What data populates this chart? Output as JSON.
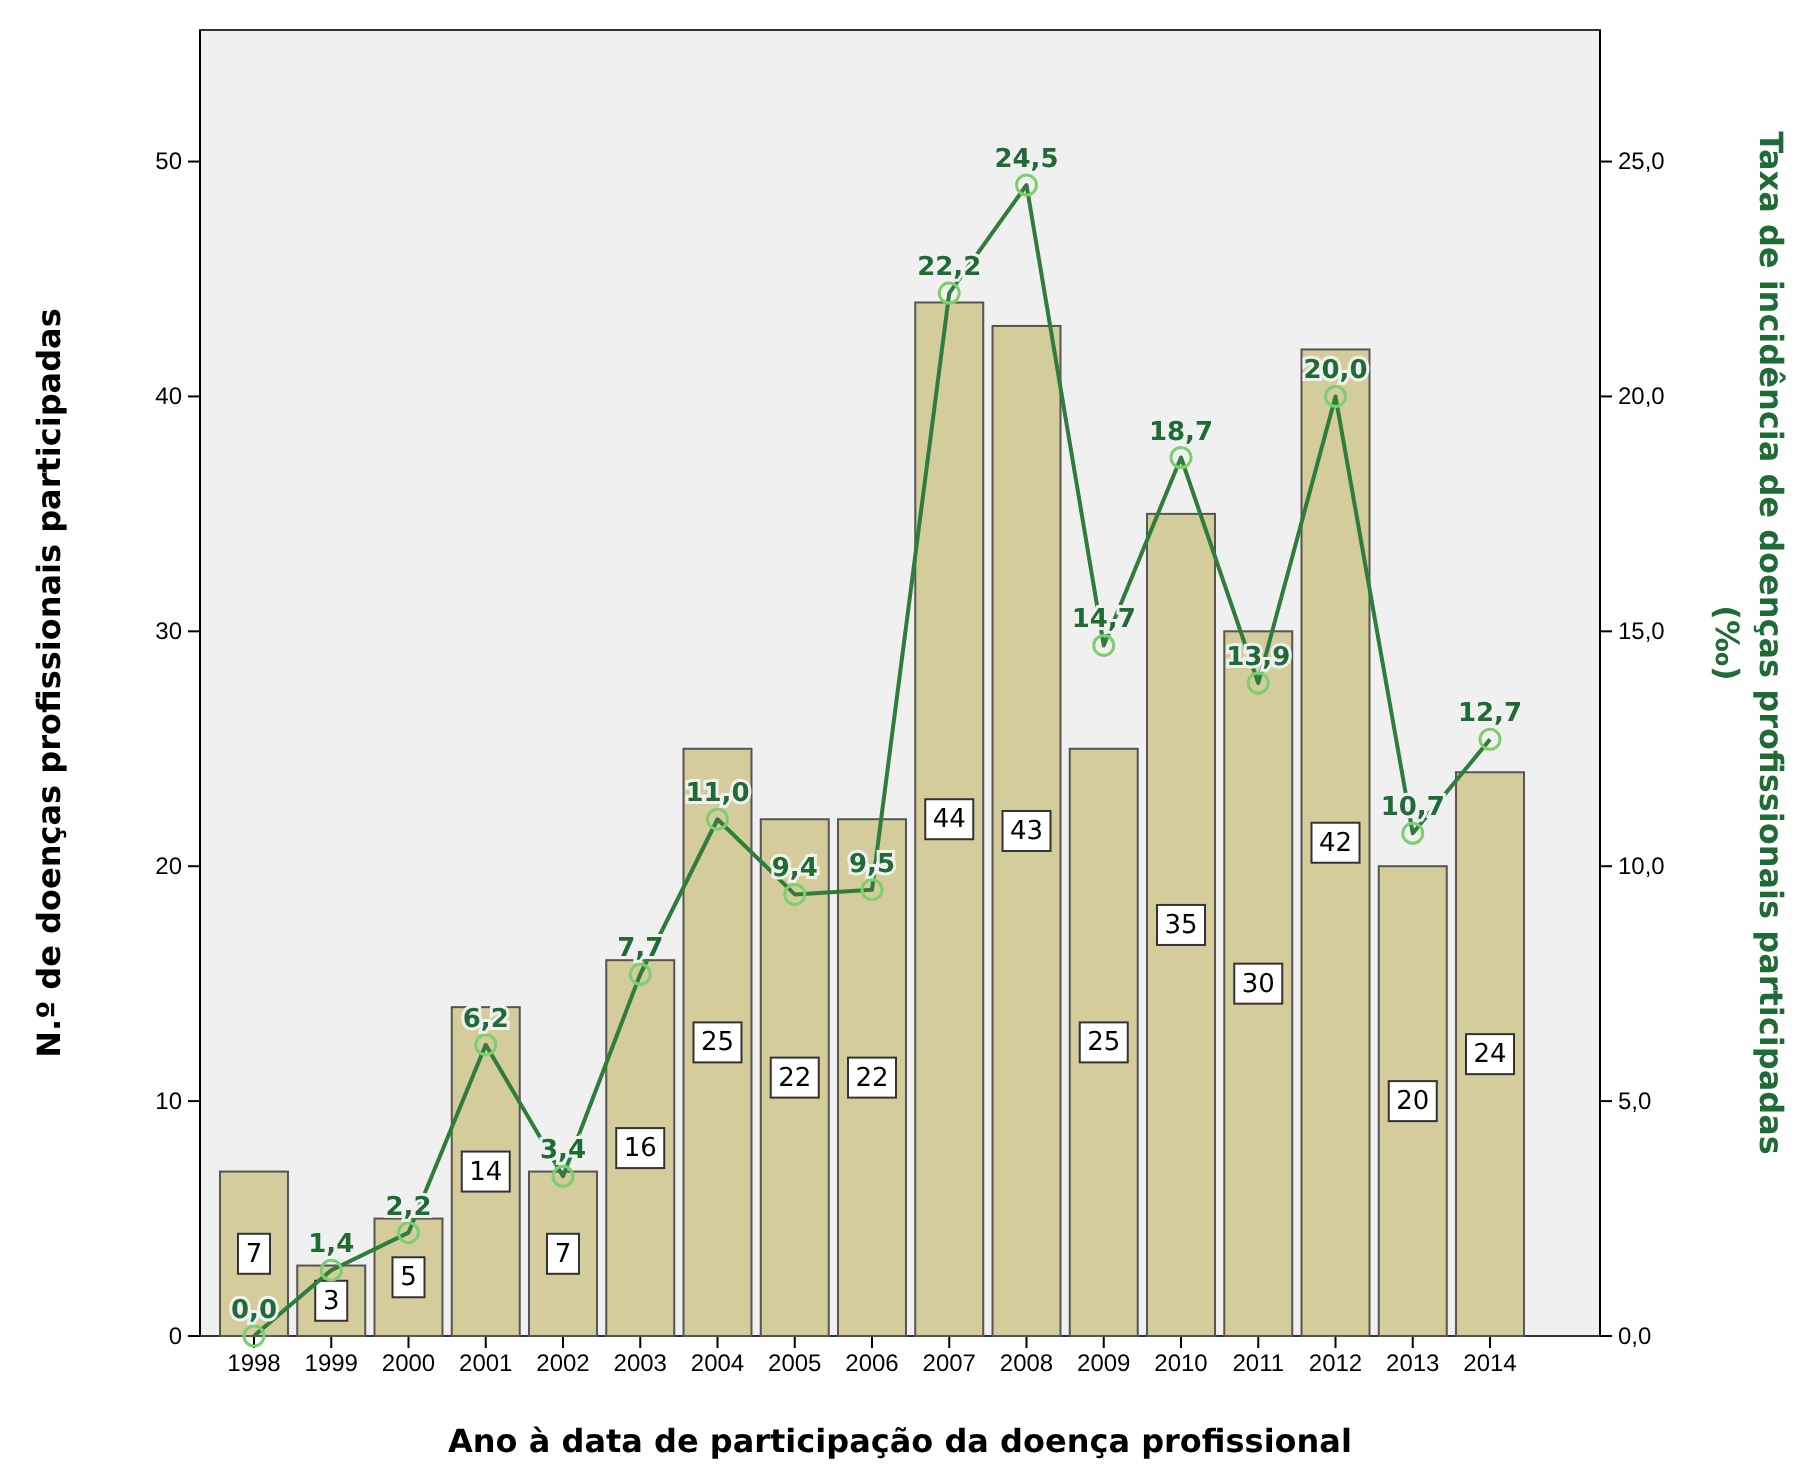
{
  "chart_data": {
    "type": "bar",
    "xlabel": "Ano à data de participação da doença profissional",
    "ylabel": "N.º de doenças profissionais participadas",
    "y2label": "Taxa de incidência de doenças profissionais participadas (‰)",
    "categories": [
      "1998",
      "1999",
      "2000",
      "2001",
      "2002",
      "2003",
      "2004",
      "2005",
      "2006",
      "2007",
      "2008",
      "2009",
      "2010",
      "2011",
      "2012",
      "2013",
      "2014"
    ],
    "ylim": [
      0,
      55.6
    ],
    "yticks": [
      0,
      10,
      20,
      30,
      40,
      50
    ],
    "y2lim": [
      0,
      27.8
    ],
    "y2ticks": [
      {
        "value": 0,
        "label": "0,0"
      },
      {
        "value": 5,
        "label": "5,0"
      },
      {
        "value": 10,
        "label": "10,0"
      },
      {
        "value": 15,
        "label": "15,0"
      },
      {
        "value": 20,
        "label": "20,0"
      },
      {
        "value": 25,
        "label": "25,0"
      }
    ],
    "grid": false,
    "data_labels": true,
    "series": [
      {
        "color": "#d4cc9a",
        "values": [
          7,
          3,
          5,
          14,
          7,
          16,
          25,
          22,
          22,
          44,
          43,
          25,
          35,
          30,
          42,
          20,
          24
        ]
      },
      {
        "type": "line",
        "axis": "y2",
        "color": "#2e7d3c",
        "marker": "circle",
        "values": [
          0.0,
          1.4,
          2.2,
          6.2,
          3.4,
          7.7,
          11.0,
          9.4,
          9.5,
          22.2,
          24.5,
          14.7,
          18.7,
          13.9,
          20.0,
          10.7,
          12.7
        ],
        "value_labels": [
          "0,0",
          "1,4",
          "2,2",
          "6,2",
          "3,4",
          "7,7",
          "11,0",
          "9,4",
          "9,5",
          "22,2",
          "24,5",
          "14,7",
          "18,7",
          "13,9",
          "20,0",
          "10,7",
          "12,7"
        ]
      }
    ]
  }
}
